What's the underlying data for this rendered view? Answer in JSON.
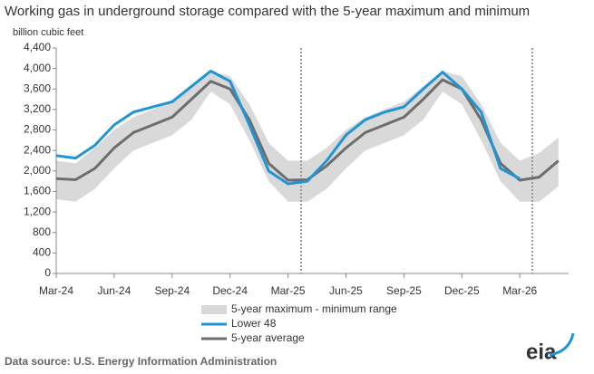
{
  "chart_data": {
    "type": "line",
    "title": "Working gas in underground storage compared with the 5-year maximum and minimum",
    "y_label": "billion cubic feet",
    "categories": [
      "Mar-24",
      null,
      null,
      "Jun-24",
      null,
      null,
      "Sep-24",
      null,
      null,
      "Dec-24",
      null,
      null,
      "Mar-25",
      null,
      null,
      "Jun-25",
      null,
      null,
      "Sep-25",
      null,
      null,
      "Dec-25",
      null,
      null,
      "Mar-26",
      null,
      null
    ],
    "range": {
      "name": "5-year maximum - minimum range",
      "color": "#d9d9d9",
      "max": [
        2200,
        2150,
        2450,
        2800,
        3050,
        3200,
        3350,
        3650,
        3950,
        3850,
        3300,
        2550,
        2200,
        2200,
        2450,
        2800,
        3050,
        3200,
        3350,
        3650,
        3950,
        3850,
        3300,
        2550,
        2200,
        2350,
        2650
      ],
      "min": [
        1450,
        1400,
        1650,
        2050,
        2400,
        2550,
        2700,
        3000,
        3550,
        3300,
        2600,
        1800,
        1400,
        1400,
        1650,
        2050,
        2400,
        2550,
        2700,
        3000,
        3550,
        3300,
        2600,
        1800,
        1400,
        1400,
        1700
      ]
    },
    "series": [
      {
        "name": "Lower 48",
        "color": "#1f95d4",
        "values": [
          2300,
          2250,
          2500,
          2900,
          3150,
          3250,
          3350,
          3650,
          3950,
          3750,
          2900,
          2000,
          1750,
          1800,
          2200,
          2700,
          3000,
          3150,
          3250,
          3600,
          3930,
          3600,
          3150,
          2050,
          1850,
          null,
          null
        ]
      },
      {
        "name": "5-year average",
        "color": "#6d6d6d",
        "values": [
          1850,
          1830,
          2050,
          2450,
          2750,
          2900,
          3050,
          3400,
          3750,
          3600,
          3000,
          2150,
          1820,
          1830,
          2100,
          2450,
          2750,
          2900,
          3050,
          3400,
          3780,
          3600,
          3000,
          2150,
          1820,
          1880,
          2200
        ]
      }
    ],
    "ylim": [
      0,
      4400
    ],
    "yticks": [
      0,
      400,
      800,
      {
        "value": 1200,
        "label": "1,200"
      },
      {
        "value": 1600,
        "label": "1,600"
      },
      {
        "value": 2000,
        "label": "2,000"
      },
      {
        "value": 2400,
        "label": "2,400"
      },
      {
        "value": 2800,
        "label": "2,800"
      },
      {
        "value": 3200,
        "label": "3,200"
      },
      {
        "value": 3600,
        "label": "3,600"
      },
      {
        "value": 4000,
        "label": "4,000"
      },
      {
        "value": 4400,
        "label": "4,400"
      }
    ],
    "grid": false
  },
  "source": "Data source:  U.S. Energy Information Administration",
  "logo": "eia"
}
